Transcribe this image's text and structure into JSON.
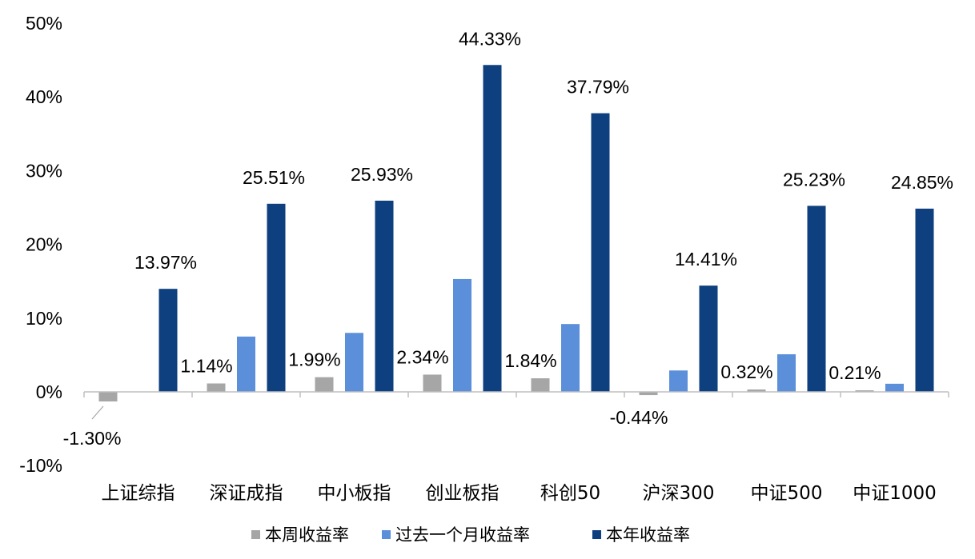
{
  "chart_data": {
    "type": "bar",
    "categories": [
      "上证综指",
      "深证成指",
      "中小板指",
      "创业板指",
      "科创50",
      "沪深300",
      "中证500",
      "中证1000"
    ],
    "series": [
      {
        "name": "本周收益率",
        "color": "#a6a6a6",
        "values": [
          -1.3,
          1.14,
          1.99,
          2.34,
          1.84,
          -0.44,
          0.32,
          0.21
        ],
        "labels": [
          "-1.30%",
          "1.14%",
          "1.99%",
          "2.34%",
          "1.84%",
          "-0.44%",
          "0.32%",
          "0.21%"
        ]
      },
      {
        "name": "过去一个月收益率",
        "color": "#5b8fd9",
        "values": [
          0.0,
          7.5,
          8.0,
          15.3,
          9.2,
          2.9,
          5.1,
          1.1
        ],
        "labels": []
      },
      {
        "name": "本年收益率",
        "color": "#0e3f7e",
        "values": [
          13.97,
          25.51,
          25.93,
          44.33,
          37.79,
          14.41,
          25.23,
          24.85
        ],
        "labels": [
          "13.97%",
          "25.51%",
          "25.93%",
          "44.33%",
          "37.79%",
          "14.41%",
          "25.23%",
          "24.85%"
        ]
      }
    ],
    "ylim": [
      -10,
      50
    ],
    "yticks": [
      "-10%",
      "0%",
      "10%",
      "20%",
      "30%",
      "40%",
      "50%"
    ],
    "ytick_values": [
      -10,
      0,
      10,
      20,
      30,
      40,
      50
    ],
    "grid": false,
    "legend_position": "bottom",
    "title": "",
    "xlabel": "",
    "ylabel": ""
  }
}
